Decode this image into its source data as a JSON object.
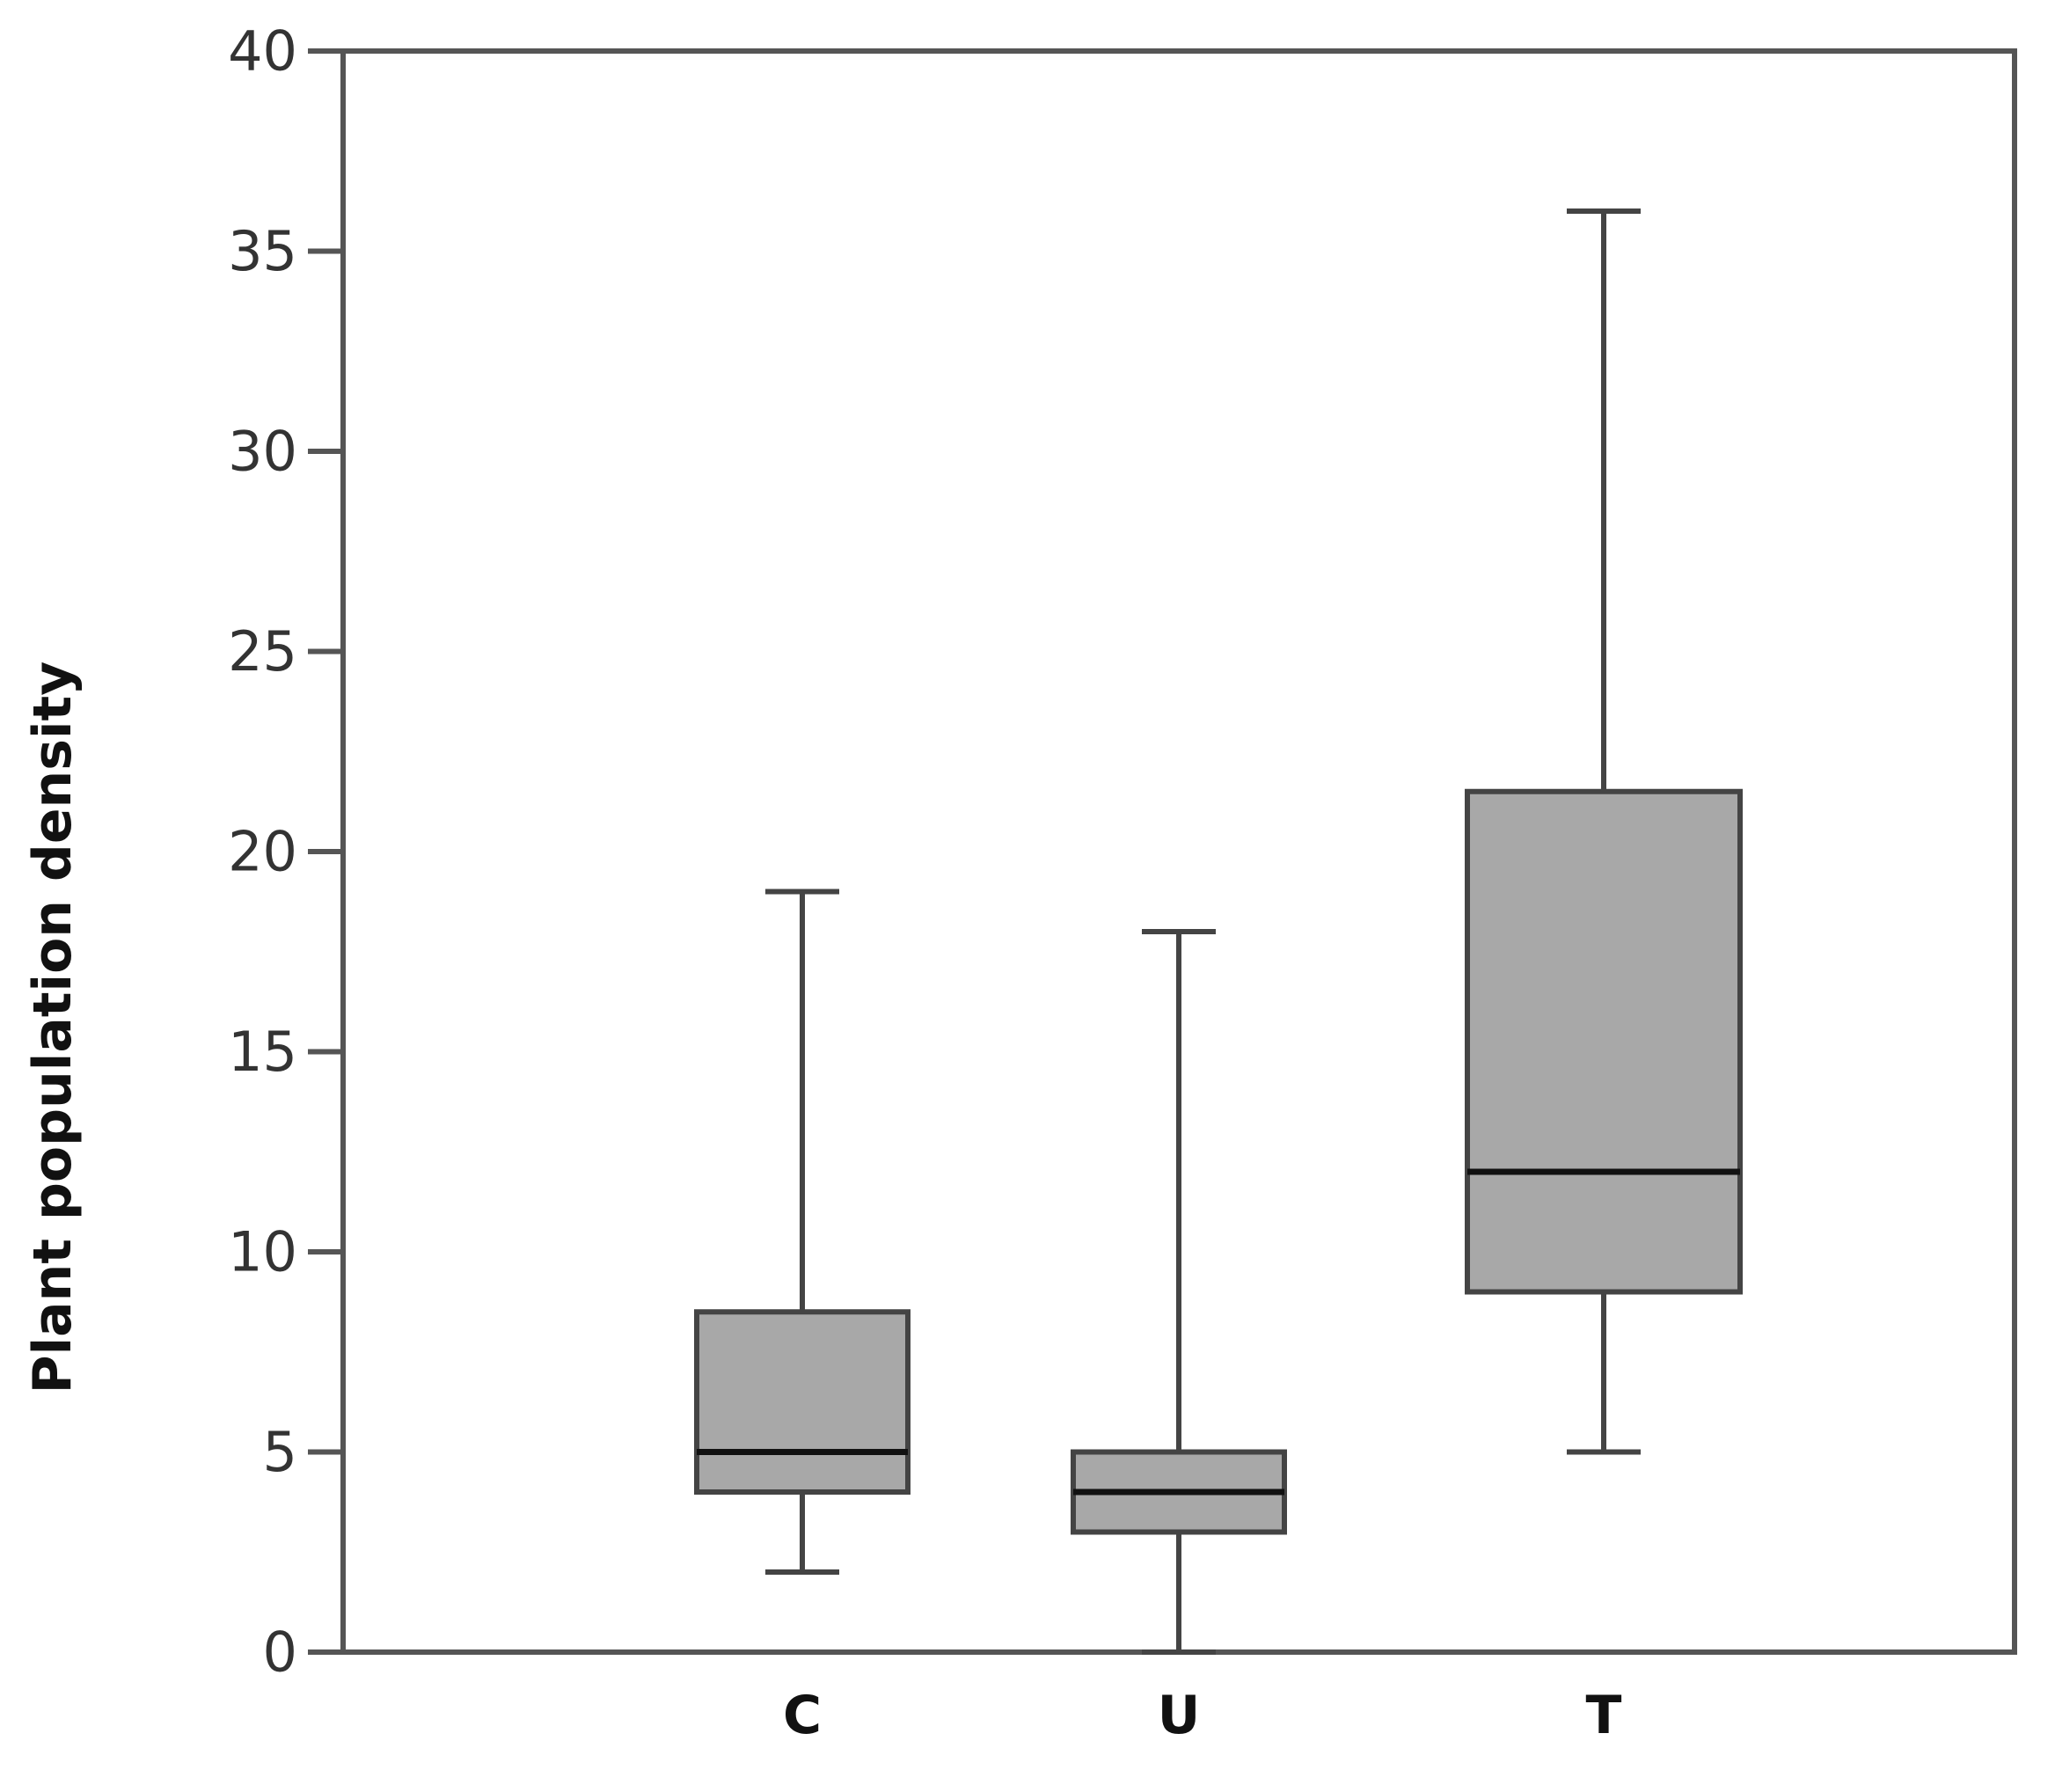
{
  "chart_data": {
    "type": "box",
    "title": "",
    "xlabel": "",
    "ylabel": "Plant population density",
    "ylim": [
      0,
      40
    ],
    "yticks": [
      "0",
      "5",
      "10",
      "15",
      "20",
      "25",
      "30",
      "35",
      "40"
    ],
    "grid": false,
    "legend": "none",
    "box_color": "#a8a8a8",
    "line_color": "#444444",
    "median_color": "#111111",
    "categories": [
      "C",
      "U",
      "T"
    ],
    "boxes": [
      {
        "category": "C",
        "min": 2,
        "q1": 4,
        "median": 5,
        "q3": 8.5,
        "max": 19
      },
      {
        "category": "U",
        "min": 0,
        "q1": 3,
        "median": 4,
        "q3": 5,
        "max": 18
      },
      {
        "category": "T",
        "min": 5,
        "q1": 9,
        "median": 12,
        "q3": 21.5,
        "max": 36
      }
    ]
  }
}
